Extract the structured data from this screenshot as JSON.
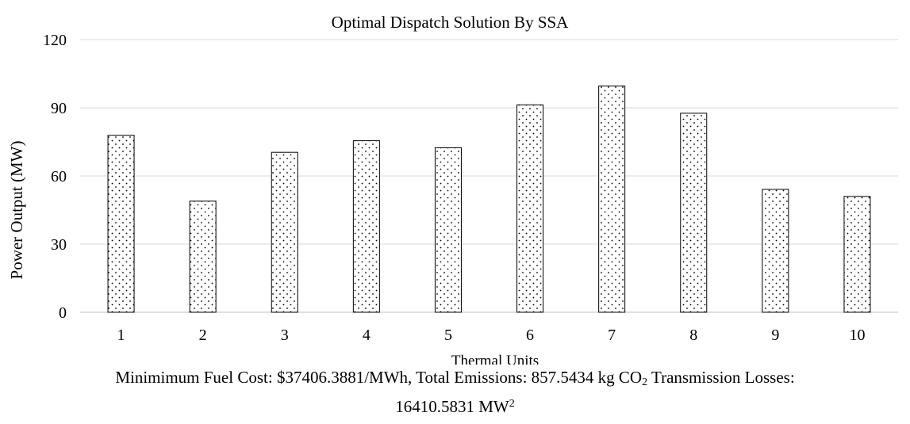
{
  "chart_data": {
    "type": "bar",
    "title": "Optimal Dispatch Solution By SSA",
    "xlabel": "Thermal Units",
    "ylabel": "Power Output (MW)",
    "categories": [
      "1",
      "2",
      "3",
      "4",
      "5",
      "6",
      "7",
      "8",
      "9",
      "10"
    ],
    "values": [
      77.9,
      48.9,
      70.4,
      75.5,
      72.4,
      91.3,
      99.6,
      87.6,
      54.1,
      51.0
    ],
    "ylim": [
      0,
      120
    ],
    "yticks": [
      "0",
      "30",
      "60",
      "90",
      "120"
    ],
    "grid": true,
    "legend": "none",
    "bar_fill": "dotted-pattern",
    "colors": {
      "bar_stroke": "#000000",
      "grid": "#d9d9d9",
      "axis": "#bfbfbf"
    }
  },
  "caption": {
    "line1_a": "Minimimum Fuel Cost: $37406.3881/MWh, Total Emissions: 857.5434 kg CO",
    "line1_sub": "2",
    "line1_b": " Transmission Losses:",
    "line2_a": "16410.5831 MW",
    "line2_sup": "2"
  }
}
